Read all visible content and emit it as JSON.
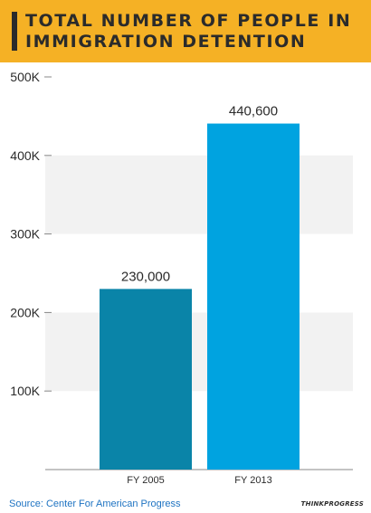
{
  "header": {
    "title": "TOTAL NUMBER OF PEOPLE IN IMMIGRATION DETENTION"
  },
  "footer": {
    "source": "Source: Center For American Progress",
    "logo": "THINKPROGRESS"
  },
  "colors": {
    "header_bg": "#f5b125",
    "bar_2005": "#0a84a8",
    "bar_2013": "#00a3e0",
    "band": "#f2f2f2",
    "text": "#2b2b2b",
    "source": "#1e73c2"
  },
  "chart_data": {
    "type": "bar",
    "categories": [
      "FY 2005",
      "FY 2013"
    ],
    "values": [
      230000,
      440600
    ],
    "data_labels": [
      "230,000",
      "440,600"
    ],
    "y_ticks": [
      100000,
      200000,
      300000,
      400000,
      500000
    ],
    "y_tick_labels": [
      "100K",
      "200K",
      "300K",
      "400K",
      "500K"
    ],
    "ylim": [
      0,
      500000
    ],
    "bar_colors": [
      "#0a84a8",
      "#00a3e0"
    ]
  }
}
